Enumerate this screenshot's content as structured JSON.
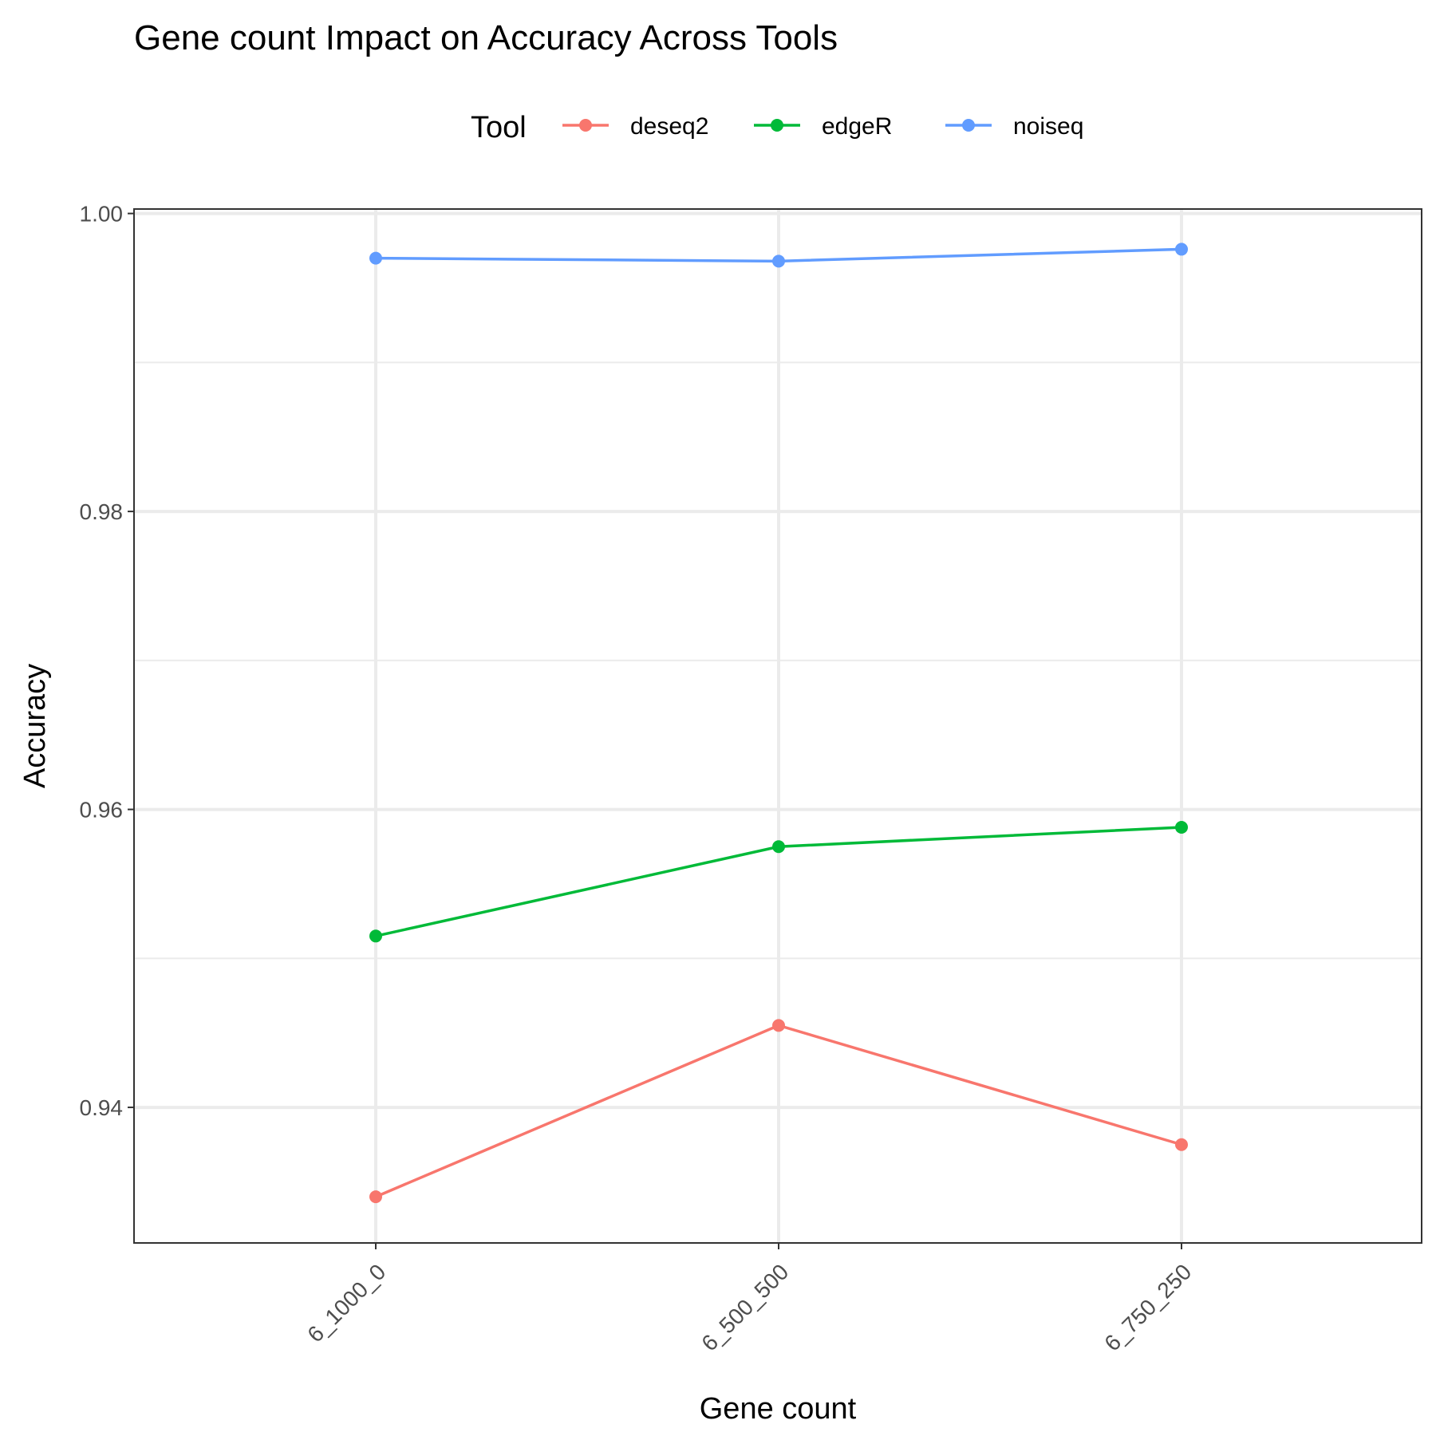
{
  "chart_data": {
    "type": "line",
    "title": "Gene count Impact on Accuracy Across Tools",
    "xlabel": "Gene count",
    "ylabel": "Accuracy",
    "categories": [
      "6_1000_0",
      "6_500_500",
      "6_750_250"
    ],
    "yticks": [
      "0.94",
      "0.96",
      "0.98",
      "1.00"
    ],
    "ytick_values": [
      0.94,
      0.96,
      0.98,
      1.0
    ],
    "ylim": [
      0.9309,
      1.0003
    ],
    "grid": true,
    "legend": {
      "title": "Tool",
      "position": "top"
    },
    "series": [
      {
        "name": "deseq2",
        "color": "#F8766D",
        "values": [
          0.934,
          0.9455,
          0.9375
        ]
      },
      {
        "name": "edgeR",
        "color": "#00BA38",
        "values": [
          0.9515,
          0.9575,
          0.9588
        ]
      },
      {
        "name": "noiseq",
        "color": "#619CFF",
        "values": [
          0.997,
          0.9968,
          0.9976
        ]
      }
    ]
  }
}
